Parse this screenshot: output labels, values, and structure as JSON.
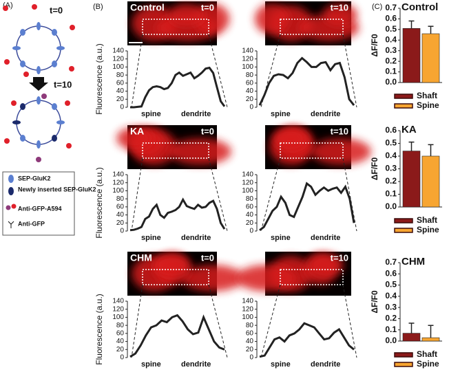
{
  "panel_a": {
    "label": "(A)",
    "t0": "t=0",
    "t10": "t=10",
    "legend": [
      "SEP-GluK2",
      "Newly inserted SEP-GluK2",
      "Anti-GFP-A594",
      "Anti-GFP"
    ]
  },
  "panel_b": {
    "label": "(B)"
  },
  "panel_c": {
    "label": "(C)"
  },
  "chart_data": [
    {
      "type": "line",
      "title": "Control",
      "time": "t=0",
      "ylabel": "Fluorescence (a.u.)",
      "color": "#222222",
      "ylim": [
        0,
        140
      ],
      "yticks": [
        0,
        20,
        40,
        60,
        80,
        100,
        120,
        140
      ],
      "annotations": [
        "spine",
        "dendrite"
      ],
      "values": [
        0,
        0,
        1,
        2,
        25,
        42,
        50,
        52,
        50,
        45,
        48,
        60,
        80,
        86,
        78,
        82,
        86,
        72,
        78,
        86,
        96,
        98,
        85,
        50,
        15,
        2
      ]
    },
    {
      "type": "line",
      "time": "t=10",
      "color": "#222222",
      "ylim": [
        0,
        140
      ],
      "yticks": [
        0,
        20,
        40,
        60,
        80,
        100,
        120,
        140
      ],
      "annotations": [
        "spine",
        "dendrite"
      ],
      "values": [
        5,
        30,
        60,
        78,
        82,
        80,
        72,
        85,
        110,
        122,
        112,
        100,
        100,
        110,
        112,
        92,
        107,
        110,
        75,
        20,
        5
      ]
    },
    {
      "type": "line",
      "title": "KA",
      "time": "t=0",
      "ylabel": "Fluorescence (a.u.)",
      "color": "#222222",
      "ylim": [
        0,
        140
      ],
      "yticks": [
        0,
        20,
        40,
        60,
        80,
        100,
        120,
        140
      ],
      "annotations": [
        "spine",
        "dendrite"
      ],
      "values": [
        2,
        3,
        6,
        10,
        30,
        36,
        55,
        65,
        40,
        33,
        45,
        48,
        52,
        60,
        78,
        62,
        58,
        55,
        65,
        58,
        60,
        70,
        75,
        55,
        20,
        5
      ]
    },
    {
      "type": "line",
      "time": "t=10",
      "color": "#222222",
      "ylim": [
        0,
        140
      ],
      "yticks": [
        0,
        20,
        40,
        60,
        80,
        100,
        120,
        140
      ],
      "annotations": [
        "spine",
        "dendrite"
      ],
      "values": [
        2,
        10,
        30,
        50,
        60,
        85,
        70,
        40,
        35,
        60,
        85,
        118,
        110,
        90,
        100,
        108,
        100,
        105,
        108,
        95,
        110,
        80,
        20
      ]
    },
    {
      "type": "line",
      "title": "CHM",
      "time": "t=0",
      "ylabel": "Fluorescence (a.u.)",
      "color": "#222222",
      "ylim": [
        0,
        140
      ],
      "yticks": [
        0,
        20,
        40,
        60,
        80,
        100,
        120,
        140
      ],
      "annotations": [
        "spine",
        "dendrite"
      ],
      "values": [
        2,
        10,
        30,
        55,
        75,
        80,
        92,
        88,
        100,
        105,
        90,
        70,
        58,
        62,
        100,
        70,
        40,
        25,
        20
      ]
    },
    {
      "type": "line",
      "time": "t=10",
      "color": "#222222",
      "ylim": [
        0,
        140
      ],
      "yticks": [
        0,
        20,
        40,
        60,
        80,
        100,
        120,
        140
      ],
      "annotations": [
        "spine",
        "dendrite"
      ],
      "values": [
        2,
        5,
        25,
        45,
        50,
        40,
        55,
        60,
        70,
        85,
        80,
        75,
        60,
        45,
        48,
        62,
        70,
        50,
        30,
        20
      ]
    },
    {
      "type": "bar",
      "title": "Control",
      "ylabel": "ΔF/F0",
      "ylim": [
        0,
        0.7
      ],
      "yticks": [
        {
          "value": 0,
          "label": "0.0"
        },
        0.1,
        0.2,
        0.3,
        0.4,
        0.5,
        0.6,
        0.7
      ],
      "series": [
        {
          "name": "Shaft",
          "color": "#8b1a1a",
          "values": [
            0.51
          ],
          "errors": [
            0.07
          ]
        },
        {
          "name": "Spine",
          "color": "#f7a531",
          "values": [
            0.46
          ],
          "errors": [
            0.07
          ]
        }
      ]
    },
    {
      "type": "bar",
      "title": "KA",
      "ylabel": "ΔF/F0",
      "ylim": [
        0,
        0.6
      ],
      "yticks": [
        {
          "value": 0,
          "label": "0.0"
        },
        0.1,
        0.2,
        0.3,
        0.4,
        0.5,
        0.6
      ],
      "series": [
        {
          "name": "Shaft",
          "color": "#8b1a1a",
          "values": [
            0.44
          ],
          "errors": [
            0.07
          ]
        },
        {
          "name": "Spine",
          "color": "#f7a531",
          "values": [
            0.4
          ],
          "errors": [
            0.09
          ]
        }
      ]
    },
    {
      "type": "bar",
      "title": "CHM",
      "ylabel": "ΔF/F0",
      "ylim": [
        0,
        0.7
      ],
      "yticks": [
        {
          "value": 0,
          "label": "0.0"
        },
        0.1,
        0.2,
        0.3,
        0.4,
        0.5,
        0.6,
        0.7
      ],
      "series": [
        {
          "name": "Shaft",
          "color": "#8b1a1a",
          "values": [
            0.07
          ],
          "errors": [
            0.09
          ]
        },
        {
          "name": "Spine",
          "color": "#f7a531",
          "values": [
            0.03
          ],
          "errors": [
            0.11
          ]
        }
      ]
    }
  ]
}
